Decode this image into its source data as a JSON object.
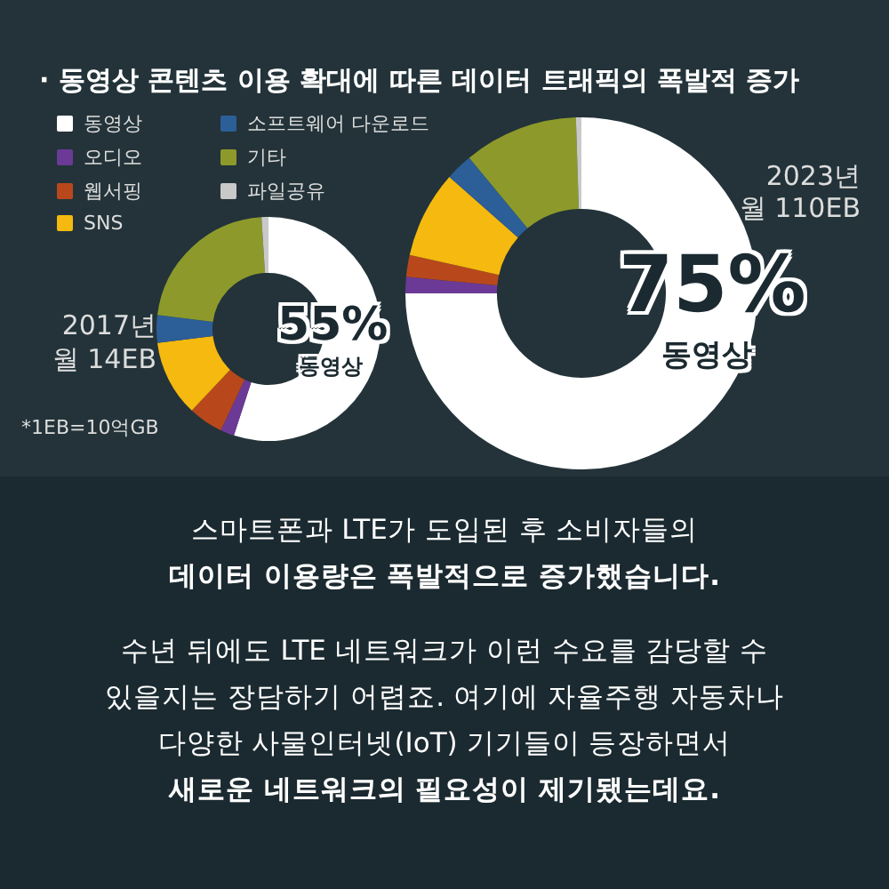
{
  "chart_data": {
    "type": "donut",
    "title": "· 동영상 콘텐츠 이용 확대에 따른 데이터 트래픽의 폭발적 증가",
    "categories": [
      "동영상",
      "오디오",
      "웹서핑",
      "SNS",
      "소프트웨어 다운로드",
      "기타",
      "파일공유"
    ],
    "colors": [
      "#ffffff",
      "#6b3a96",
      "#b8481c",
      "#f5b90f",
      "#2c5e98",
      "#8d9a2b",
      "#c9c9c9"
    ],
    "series": [
      {
        "name": "2017년",
        "values": [
          55,
          2,
          5,
          11,
          4,
          22,
          1
        ]
      },
      {
        "name": "2023년",
        "values": [
          75,
          1.5,
          2,
          8,
          2.5,
          10.5,
          0.5
        ]
      }
    ],
    "legend": "top left",
    "annotations": [
      "월 14EB",
      "55%",
      "동영상",
      "*1EB=10억GB",
      "월 110EB",
      "75%",
      "동영상",
      "스마트폰과 LTE가 도입된 후 소비자들의",
      "데이터 이용량은 폭발적으로 증가했습니다.",
      "수년 뒤에도 LTE 네트워크가 이런 수요를 감당할 수",
      "있을지는 장담하기 어렵죠. 여기에 자율주행 자동차나",
      "다양한 사물인터넷(IoT) 기기들이 등장하면서",
      "새로운 네트워크의 필요성이 제기됐는데요."
    ]
  }
}
